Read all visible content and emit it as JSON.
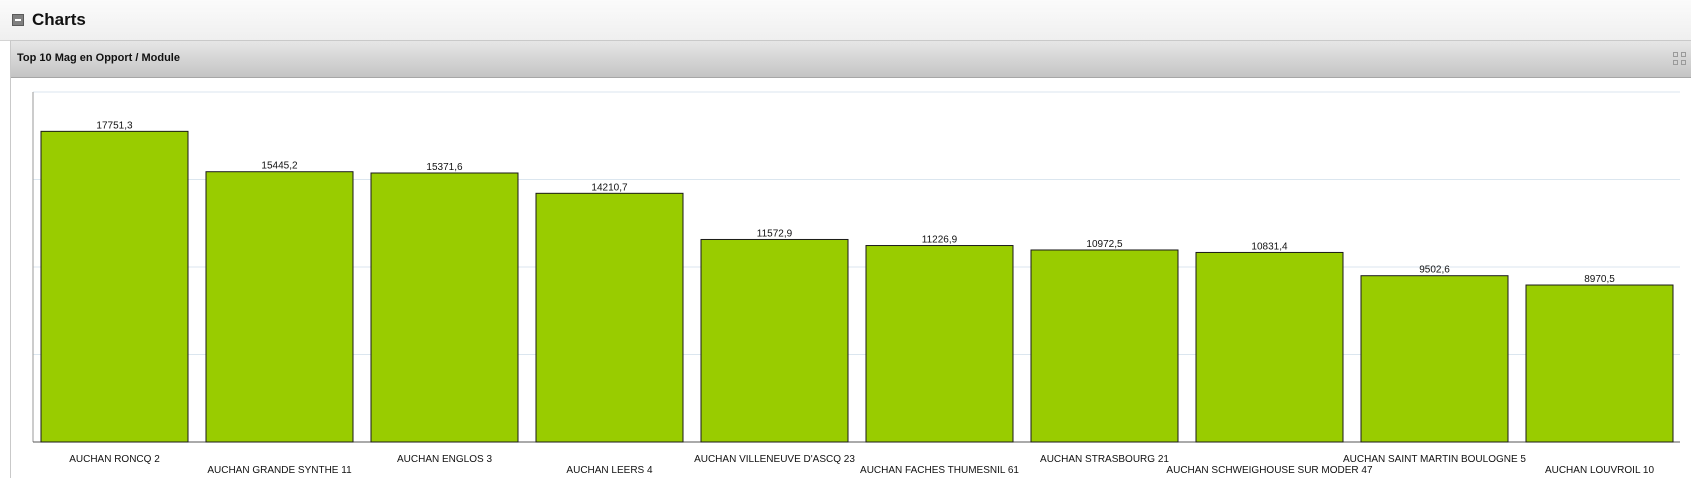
{
  "section": {
    "title": "Charts"
  },
  "panel": {
    "title": "Top 10 Mag en Opport / Module"
  },
  "colors": {
    "bar": "#99cc00",
    "bar_border": "#1a1a1a",
    "grid": "#dbe6ef"
  },
  "icons": {
    "collapse": "minus-box-icon",
    "tools": "maximize-grid-icon"
  },
  "chart_data": {
    "type": "bar",
    "categories": [
      "AUCHAN RONCQ 2",
      "AUCHAN GRANDE SYNTHE 11",
      "AUCHAN ENGLOS 3",
      "AUCHAN LEERS 4",
      "AUCHAN VILLENEUVE D'ASCQ 23",
      "AUCHAN FACHES THUMESNIL 61",
      "AUCHAN STRASBOURG 21",
      "AUCHAN SCHWEIGHOUSE SUR MODER 47",
      "AUCHAN SAINT MARTIN BOULOGNE 5",
      "AUCHAN LOUVROIL 10"
    ],
    "values": [
      17751.3,
      15445.2,
      15371.6,
      14210.7,
      11572.9,
      11226.9,
      10972.5,
      10831.4,
      9502.6,
      8970.5
    ],
    "value_labels": [
      "17751,3",
      "15445,2",
      "15371,6",
      "14210,7",
      "11572,9",
      "11226,9",
      "10972,5",
      "10831,4",
      "9502,6",
      "8970,5"
    ],
    "ylim": [
      0,
      20000
    ],
    "gridlines": [
      5000,
      10000,
      15000,
      20000
    ],
    "grid": true,
    "legend": "none"
  }
}
